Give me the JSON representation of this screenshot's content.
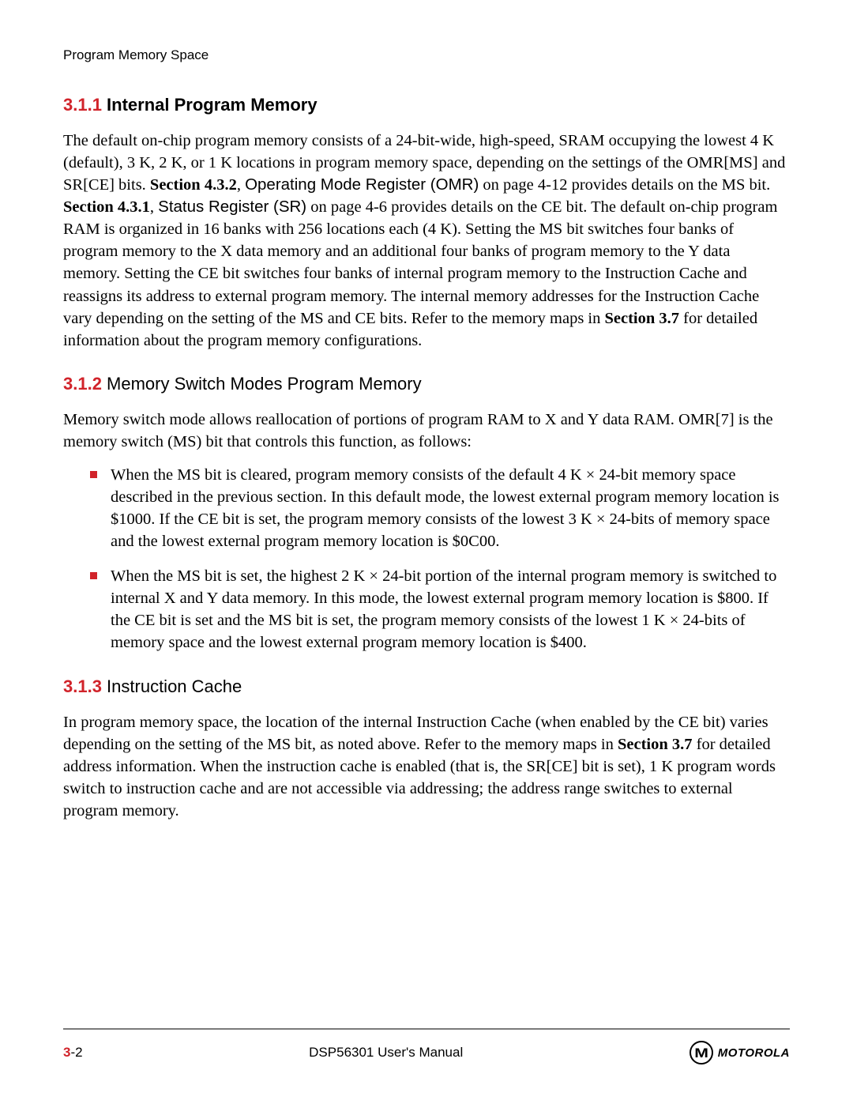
{
  "header": {
    "running_title": "Program Memory Space"
  },
  "colors": {
    "accent": "#d1232a",
    "text": "#000000",
    "rule": "#7a7a7a",
    "background": "#ffffff"
  },
  "typography": {
    "body_font": "Times New Roman",
    "heading_font": "Arial",
    "body_size_pt": 15,
    "heading_size_pt": 16
  },
  "sections": [
    {
      "number": "3.1.1",
      "title": "Internal Program Memory",
      "title_bold": true,
      "paragraphs": [
        {
          "runs": [
            {
              "t": "The default on-chip program memory consists of a 24-bit-wide, high-speed, SRAM occupying the lowest 4 K (default), 3 K, 2 K, or 1 K locations in program memory space, depending on the settings of the OMR[MS] and SR[CE] bits. "
            },
            {
              "t": "Section 4.3.2",
              "bold": true
            },
            {
              "t": ",  "
            },
            {
              "t": "Operating Mode Register (OMR)",
              "arial": true
            },
            {
              "t": " on page 4-12 provides details on the MS bit. "
            },
            {
              "t": "Section 4.3.1",
              "bold": true
            },
            {
              "t": ",  "
            },
            {
              "t": "Status Register (SR)",
              "arial": true
            },
            {
              "t": " on page 4-6 provides details on the CE bit. The default on-chip program RAM is organized in 16 banks with 256 locations each (4 K). Setting the MS bit switches four banks of program memory to the X data memory and an additional four banks of program memory to the Y data memory. Setting the CE bit switches four banks of internal program memory to the Instruction Cache and reassigns its address to external program memory. The internal memory addresses for the Instruction Cache vary depending on the setting of the MS and CE bits. Refer to the memory maps in "
            },
            {
              "t": "Section 3.7",
              "bold": true
            },
            {
              "t": " for detailed information about the program memory configurations."
            }
          ]
        }
      ]
    },
    {
      "number": "3.1.2",
      "title": "Memory Switch Modes Program Memory",
      "title_bold": false,
      "paragraphs": [
        {
          "runs": [
            {
              "t": "Memory switch mode allows reallocation of portions of program RAM to X and Y data RAM. OMR[7] is the memory switch (MS) bit that controls this function, as follows:"
            }
          ]
        }
      ],
      "bullets": [
        "When the MS bit is cleared, program memory consists of the default 4 K × 24-bit memory space described in the previous section. In this default mode, the lowest external program memory location is $1000. If the CE bit is set, the program memory consists of the lowest 3 K × 24-bits of memory space and the lowest external program memory location is $0C00.",
        "When the MS bit is set, the highest 2 K × 24-bit portion of the internal program memory is switched to internal X and Y data memory. In this mode, the lowest external program memory location is $800. If the CE bit is set and the MS bit is set, the program memory consists of the lowest 1 K × 24-bits of memory space and the lowest external program memory location is $400."
      ]
    },
    {
      "number": "3.1.3",
      "title": "Instruction Cache",
      "title_bold": false,
      "paragraphs": [
        {
          "runs": [
            {
              "t": "In program memory space, the location of the internal Instruction Cache (when enabled by the CE bit) varies depending on the setting of the MS bit, as noted above. Refer to the memory maps in "
            },
            {
              "t": "Section 3.7",
              "bold": true
            },
            {
              "t": " for detailed address information. When the instruction cache is enabled (that is, the SR[CE] bit is set), 1 K program words switch to instruction cache and are not accessible via addressing; the address range switches to external program memory."
            }
          ]
        }
      ]
    }
  ],
  "footer": {
    "page_chapter": "3",
    "page_dash": "-",
    "page_num": "2",
    "center": "DSP56301 User's Manual",
    "logo_glyph": "M",
    "logo_text": "MOTOROLA"
  }
}
